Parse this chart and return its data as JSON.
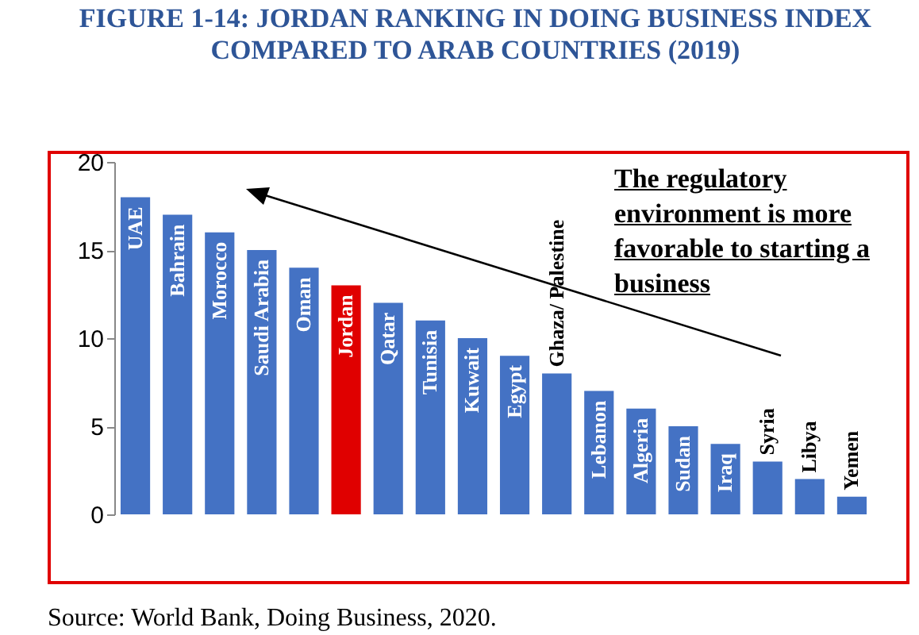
{
  "chart_data": {
    "type": "bar",
    "title": "FIGURE 1-14: JORDAN RANKING IN DOING BUSINESS INDEX COMPARED TO ARAB COUNTRIES (2019)",
    "categories": [
      "UAE",
      "Bahrain",
      "Morocco",
      "Saudi Arabia",
      "Oman",
      "Jordan",
      "Qatar",
      "Tunisia",
      "Kuwait",
      "Egypt",
      "Ghaza/ Palestine",
      "Lebanon",
      "Algeria",
      "Sudan",
      "Iraq",
      "Syria",
      "Libya",
      "Yemen"
    ],
    "values": [
      18,
      17,
      16,
      15,
      14,
      13,
      12,
      11,
      10,
      9,
      8,
      7,
      6,
      5,
      4,
      3,
      2,
      1
    ],
    "colors": [
      "#4472c4",
      "#4472c4",
      "#4472c4",
      "#4472c4",
      "#4472c4",
      "#e00000",
      "#4472c4",
      "#4472c4",
      "#4472c4",
      "#4472c4",
      "#4472c4",
      "#4472c4",
      "#4472c4",
      "#4472c4",
      "#4472c4",
      "#4472c4",
      "#4472c4",
      "#4472c4"
    ],
    "ylim": [
      0,
      20
    ],
    "yticks": [
      0,
      5,
      10,
      15,
      20
    ],
    "grid": false,
    "tick_labels": "y",
    "annotations": [
      "The regulatory environment is more favorable  to starting a business",
      "Source: World Bank, Doing Business, 2020."
    ]
  }
}
